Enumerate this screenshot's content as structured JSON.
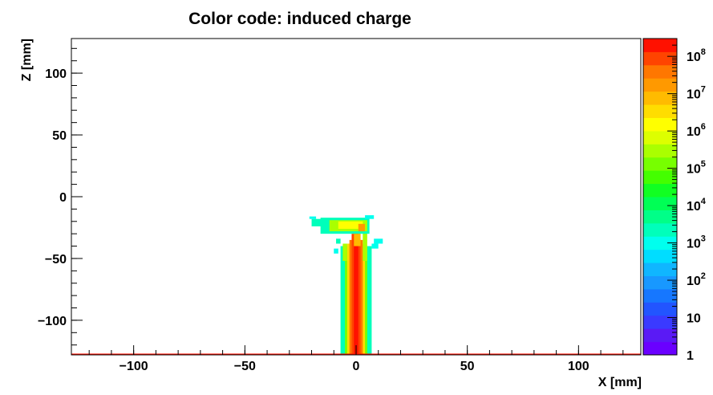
{
  "chart_data": {
    "type": "heatmap",
    "title": "Color code: induced charge",
    "xlabel": "X [mm]",
    "ylabel": "Z [mm]",
    "xlim": [
      -128,
      128
    ],
    "ylim": [
      -128,
      128
    ],
    "x_ticks": [
      -100,
      -50,
      0,
      50,
      100
    ],
    "y_ticks": [
      -100,
      -50,
      0,
      50,
      100
    ],
    "x_tick_labels": [
      "−100",
      "−50",
      "0",
      "50",
      "100"
    ],
    "y_tick_labels": [
      "−100",
      "−50",
      "0",
      "50",
      "100"
    ],
    "z_scale": "log",
    "z_range": [
      1,
      300000000
    ],
    "z_ticks": [
      {
        "base": "1",
        "exp": ""
      },
      {
        "base": "10",
        "exp": ""
      },
      {
        "base": "10",
        "exp": "2"
      },
      {
        "base": "10",
        "exp": "3"
      },
      {
        "base": "10",
        "exp": "4"
      },
      {
        "base": "10",
        "exp": "5"
      },
      {
        "base": "10",
        "exp": "6"
      },
      {
        "base": "10",
        "exp": "7"
      },
      {
        "base": "10",
        "exp": "8"
      }
    ],
    "palette": [
      "#6a00ff",
      "#5a1af5",
      "#3a3aff",
      "#2255ff",
      "#1677ff",
      "#1898ff",
      "#10b6ff",
      "#00ddff",
      "#00ffee",
      "#00ffbb",
      "#00ff88",
      "#00ff55",
      "#11ff22",
      "#44ff00",
      "#77ff00",
      "#aaff00",
      "#ddff00",
      "#ffff00",
      "#ffdd00",
      "#ffbb00",
      "#ff9900",
      "#ff7700",
      "#ff4400",
      "#ff1100"
    ],
    "cells": [
      {
        "x0": -7,
        "x1": 7,
        "z0": -128,
        "z1": -40,
        "log_value": 3.3
      },
      {
        "x0": -5,
        "x1": 5,
        "z0": -128,
        "z1": -40,
        "log_value": 5.2
      },
      {
        "x0": -4,
        "x1": 4,
        "z0": -128,
        "z1": -38,
        "log_value": 6.6
      },
      {
        "x0": -3,
        "x1": 3,
        "z0": -128,
        "z1": -35,
        "log_value": 7.6
      },
      {
        "x0": -2,
        "x1": 2,
        "z0": -128,
        "z1": -30,
        "log_value": 8.1
      },
      {
        "x0": -1,
        "x1": 1,
        "z0": -128,
        "z1": -25,
        "log_value": 8.3
      },
      {
        "x0": 3,
        "x1": 5,
        "z0": -52,
        "z1": -28,
        "log_value": 5.6
      },
      {
        "x0": -6,
        "x1": -4,
        "z0": -52,
        "z1": -38,
        "log_value": 5.4
      },
      {
        "x0": -16,
        "x1": 6,
        "z0": -30,
        "z1": -17,
        "log_value": 3.3
      },
      {
        "x0": -12,
        "x1": 5,
        "z0": -28,
        "z1": -19,
        "log_value": 5.3
      },
      {
        "x0": -8,
        "x1": 3,
        "z0": -26,
        "z1": -20,
        "log_value": 6.3
      },
      {
        "x0": -20,
        "x1": -15,
        "z0": -24,
        "z1": -18,
        "log_value": 3.4
      },
      {
        "x0": -21,
        "x1": -18,
        "z0": -18,
        "z1": -16,
        "log_value": 3.0
      },
      {
        "x0": 4,
        "x1": 8,
        "z0": -18,
        "z1": -15,
        "log_value": 3.0
      },
      {
        "x0": 8,
        "x1": 12,
        "z0": -38,
        "z1": -34,
        "log_value": 3.0
      },
      {
        "x0": 7,
        "x1": 10,
        "z0": -42,
        "z1": -38,
        "log_value": 3.0
      },
      {
        "x0": -9,
        "x1": -7,
        "z0": -38,
        "z1": -34,
        "log_value": 3.4
      },
      {
        "x0": -10,
        "x1": -8,
        "z0": -46,
        "z1": -42,
        "log_value": 3.0
      },
      {
        "x0": 1,
        "x1": 4,
        "z0": -28,
        "z1": -22,
        "log_value": 7.4
      },
      {
        "x0": -1,
        "x1": 2,
        "z0": -40,
        "z1": -30,
        "log_value": 6.8
      },
      {
        "x0": -128,
        "x1": 128,
        "z0": -128,
        "z1": -127,
        "log_value": 8.3
      }
    ]
  }
}
